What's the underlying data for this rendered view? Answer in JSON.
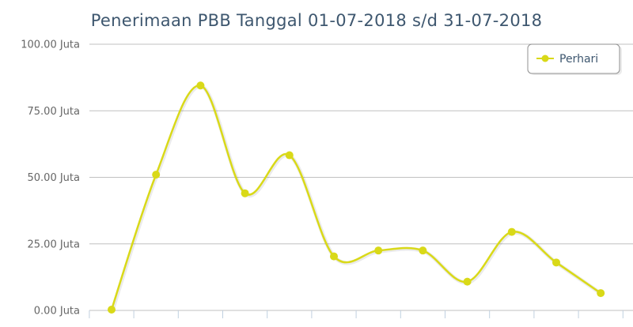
{
  "chart_data": {
    "type": "line",
    "title": "Penerimaan PBB Tanggal 01-07-2018 s/d 31-07-2018",
    "xlabel": "",
    "ylabel": "",
    "ylim": [
      0,
      100
    ],
    "yticks": [
      {
        "value": 0,
        "label": "0.00 Juta"
      },
      {
        "value": 25,
        "label": "25.00 Juta"
      },
      {
        "value": 50,
        "label": "50.00 Juta"
      },
      {
        "value": 75,
        "label": "75.00 Juta"
      },
      {
        "value": 100,
        "label": "100.00 Juta"
      }
    ],
    "grid": true,
    "legend_position": "top-right",
    "series": [
      {
        "name": "Perhari",
        "color": "#d9d918",
        "values": [
          0.3,
          51,
          84.5,
          44,
          58.3,
          20.3,
          22.5,
          22.5,
          10.8,
          29.5,
          18,
          6.5
        ]
      }
    ]
  }
}
